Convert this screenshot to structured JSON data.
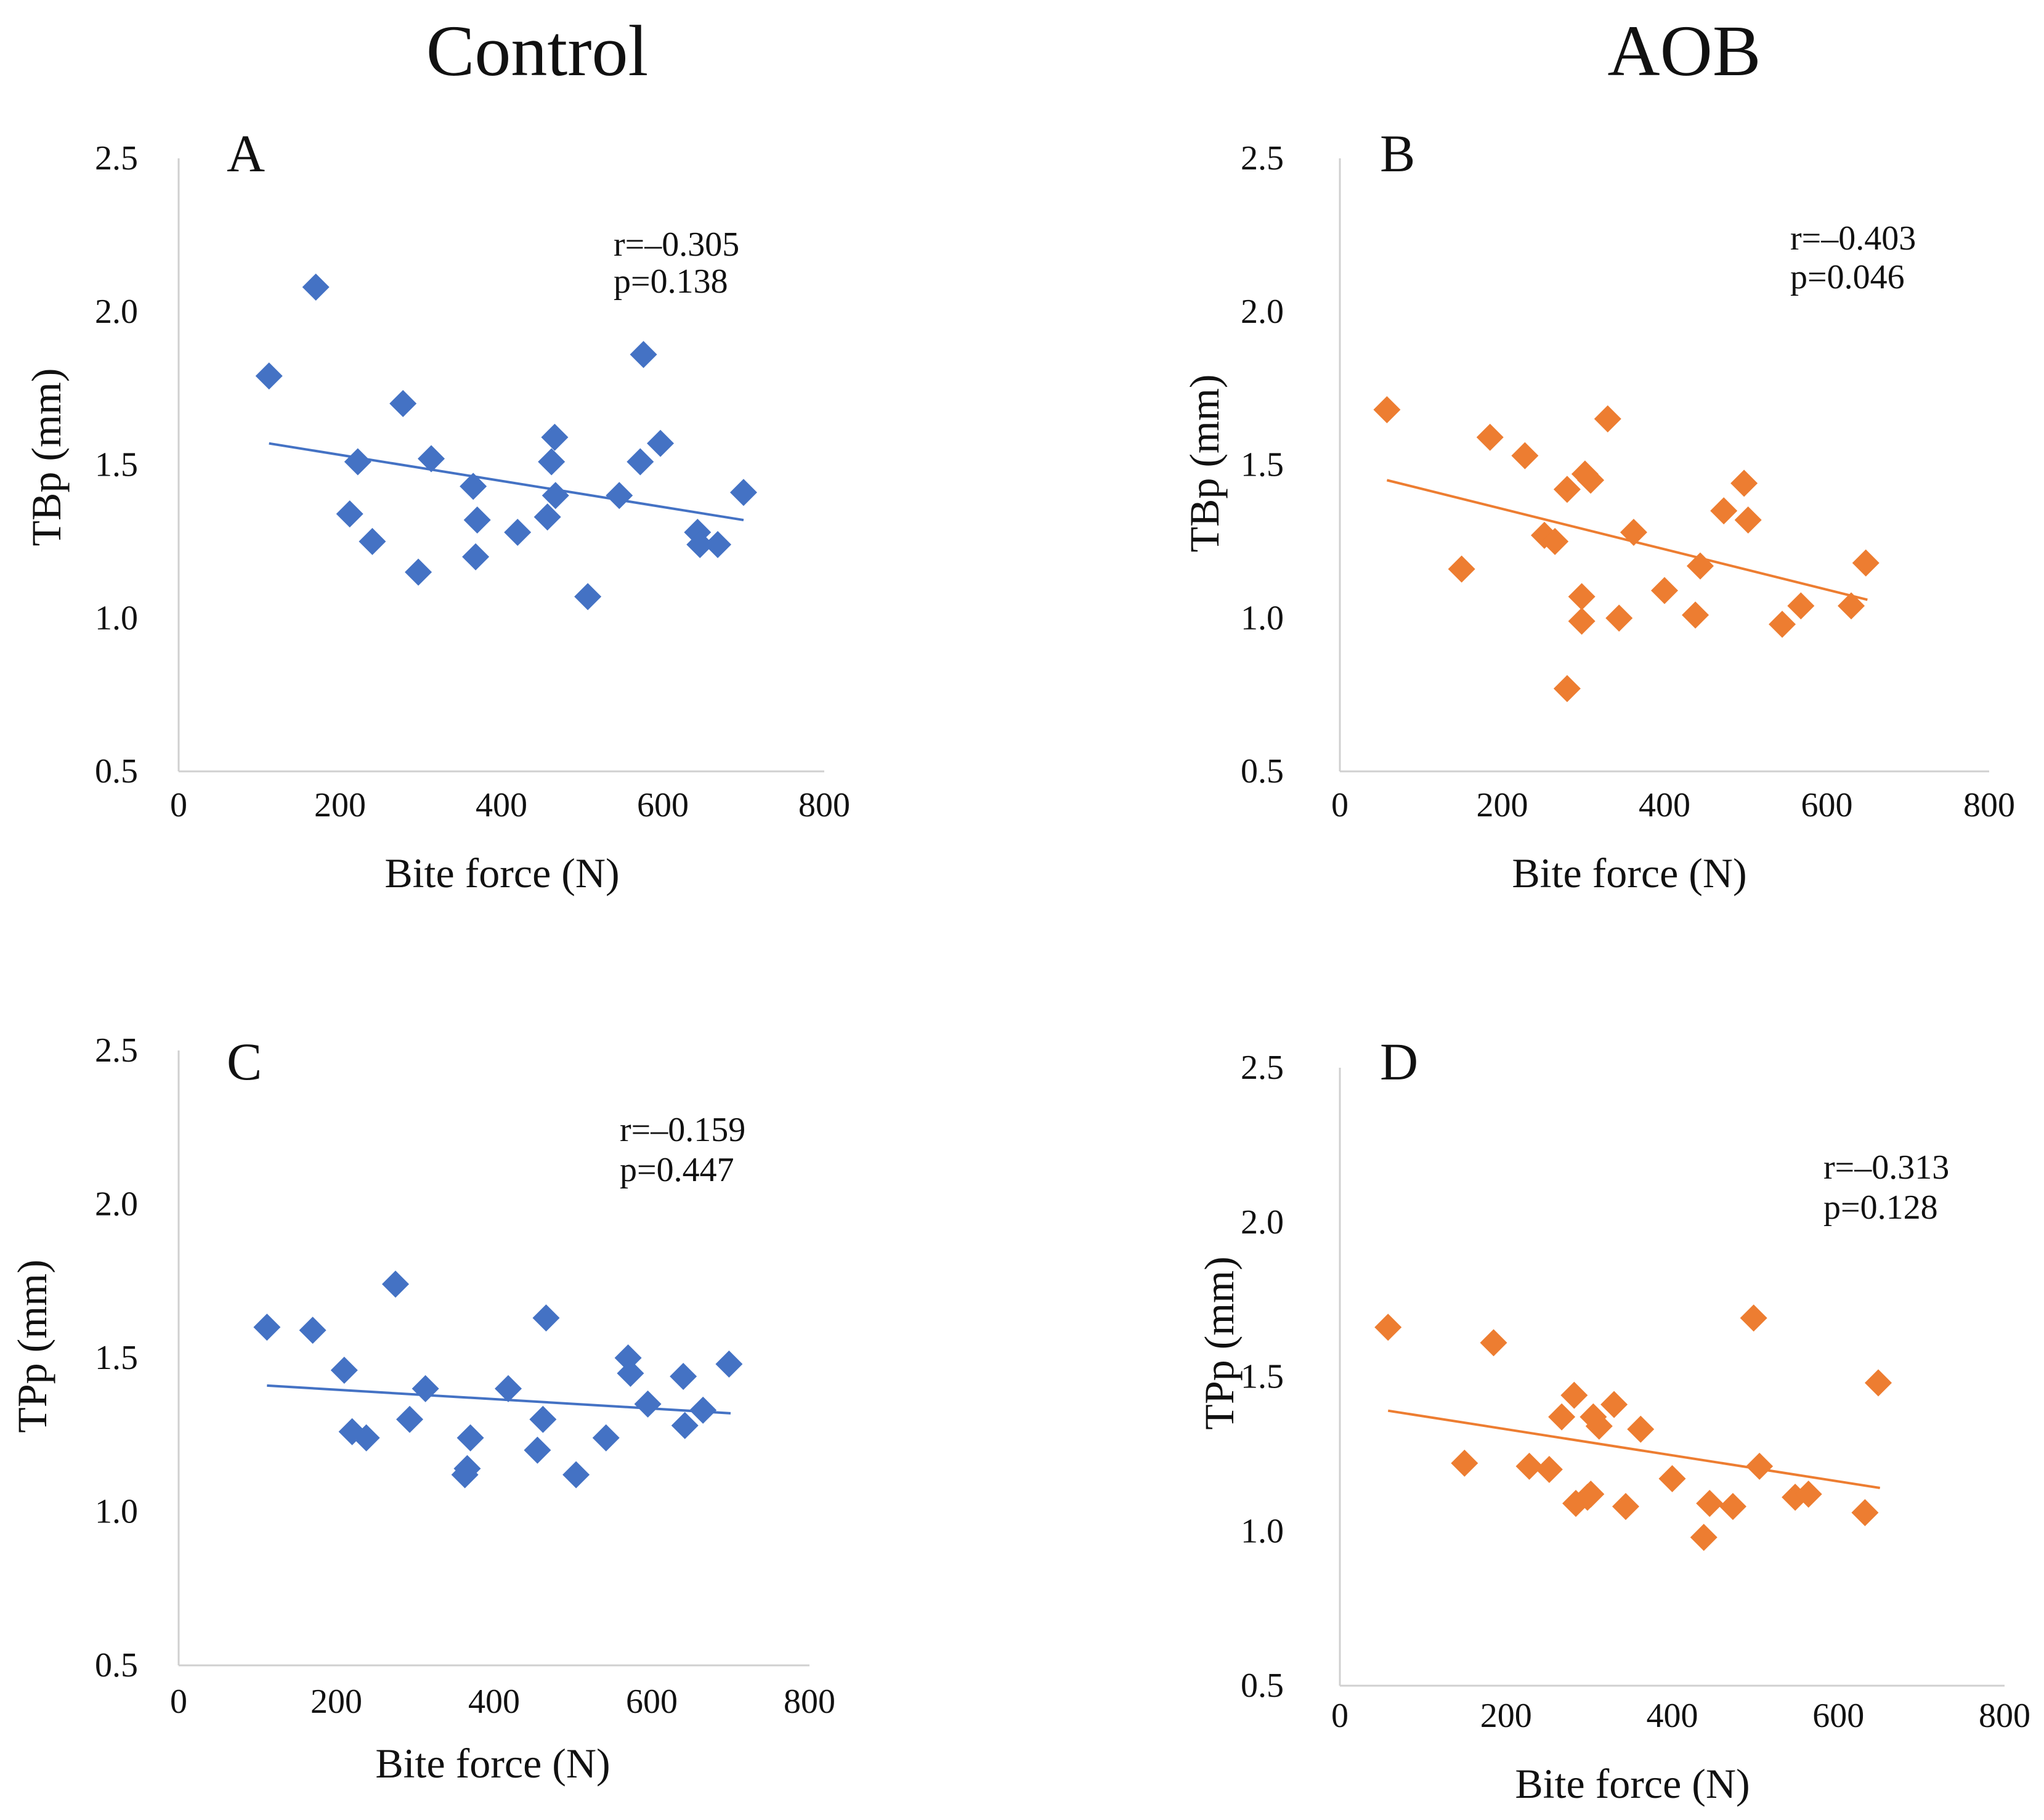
{
  "figure": {
    "column_titles": [
      "Control",
      "AOB"
    ]
  },
  "colors": {
    "control": "#4472C4",
    "aob": "#ED7D31",
    "axis": "#d0d0d0",
    "text": "#111111"
  },
  "chart_data": [
    {
      "type": "scatter",
      "panel": "A",
      "group": "Control",
      "xlabel": "Bite force (N)",
      "ylabel": "TBp (mm)",
      "xlim": [
        0,
        800
      ],
      "ylim": [
        0.5,
        2.5
      ],
      "xticks": [
        "0",
        "200",
        "400",
        "600",
        "800"
      ],
      "yticks": [
        "0.5",
        "1.0",
        "1.5",
        "2.0",
        "2.5"
      ],
      "annotation": {
        "r": "r=–0.305",
        "p": "p=0.138"
      },
      "trendline": {
        "x": [
          112,
          700
        ],
        "y": [
          1.57,
          1.32
        ]
      },
      "marker": "diamond",
      "x": [
        112,
        170,
        212,
        222,
        240,
        278,
        297,
        313,
        365,
        368,
        370,
        420,
        457,
        462,
        466,
        467,
        507,
        546,
        572,
        576,
        597,
        643,
        646,
        668,
        700
      ],
      "y": [
        1.79,
        2.08,
        1.34,
        1.51,
        1.25,
        1.7,
        1.15,
        1.52,
        1.43,
        1.2,
        1.32,
        1.28,
        1.33,
        1.51,
        1.59,
        1.4,
        1.07,
        1.4,
        1.51,
        1.86,
        1.57,
        1.28,
        1.24,
        1.24,
        1.41
      ]
    },
    {
      "type": "scatter",
      "panel": "B",
      "group": "AOB",
      "xlabel": "Bite force (N)",
      "ylabel": "TBp (mm)",
      "xlim": [
        0,
        800
      ],
      "ylim": [
        0.5,
        2.5
      ],
      "xticks": [
        "0",
        "200",
        "400",
        "600",
        "800"
      ],
      "yticks": [
        "0.5",
        "1.0",
        "1.5",
        "2.0",
        "2.5"
      ],
      "annotation": {
        "r": "r=–0.403",
        "p": "p=0.046"
      },
      "trendline": {
        "x": [
          58,
          650
        ],
        "y": [
          1.45,
          1.06
        ]
      },
      "marker": "diamond",
      "x": [
        58,
        150,
        185,
        228,
        252,
        265,
        280,
        280,
        298,
        298,
        302,
        309,
        330,
        344,
        362,
        400,
        438,
        444,
        473,
        498,
        503,
        545,
        568,
        630,
        648
      ],
      "y": [
        1.68,
        1.16,
        1.59,
        1.53,
        1.27,
        1.25,
        1.42,
        0.77,
        1.07,
        0.99,
        1.47,
        1.45,
        1.65,
        1.0,
        1.28,
        1.09,
        1.01,
        1.17,
        1.35,
        1.44,
        1.32,
        0.98,
        1.04,
        1.04,
        1.18
      ]
    },
    {
      "type": "scatter",
      "panel": "C",
      "group": "Control",
      "xlabel": "Bite force (N)",
      "ylabel": "TPp (mm)",
      "xlim": [
        0,
        800
      ],
      "ylim": [
        0.5,
        2.5
      ],
      "xticks": [
        "0",
        "200",
        "400",
        "600",
        "800"
      ],
      "yticks": [
        "0.5",
        "1.0",
        "1.5",
        "2.0",
        "2.5"
      ],
      "annotation": {
        "r": "r=–0.159",
        "p": "p=0.447"
      },
      "trendline": {
        "x": [
          112,
          700
        ],
        "y": [
          1.41,
          1.32
        ]
      },
      "marker": "diamond",
      "x": [
        112,
        170,
        210,
        220,
        238,
        275,
        293,
        313,
        363,
        366,
        370,
        418,
        455,
        462,
        466,
        504,
        542,
        570,
        573,
        595,
        640,
        642,
        665,
        698
      ],
      "y": [
        1.6,
        1.59,
        1.46,
        1.26,
        1.24,
        1.74,
        1.3,
        1.4,
        1.12,
        1.14,
        1.24,
        1.4,
        1.2,
        1.3,
        1.63,
        1.12,
        1.24,
        1.5,
        1.45,
        1.35,
        1.44,
        1.28,
        1.33,
        1.48
      ]
    },
    {
      "type": "scatter",
      "panel": "D",
      "group": "AOB",
      "xlabel": "Bite force (N)",
      "ylabel": "TPp (mm)",
      "xlim": [
        0,
        800
      ],
      "ylim": [
        0.5,
        2.5
      ],
      "xticks": [
        "0",
        "200",
        "400",
        "600",
        "800"
      ],
      "yticks": [
        "0.5",
        "1.0",
        "1.5",
        "2.0",
        "2.5"
      ],
      "annotation": {
        "r": "r=–0.313",
        "p": "p=0.128"
      },
      "trendline": {
        "x": [
          58,
          650
        ],
        "y": [
          1.39,
          1.14
        ]
      },
      "marker": "diamond",
      "x": [
        58,
        150,
        185,
        228,
        252,
        267,
        282,
        284,
        298,
        302,
        305,
        312,
        330,
        344,
        362,
        400,
        438,
        445,
        473,
        498,
        505,
        548,
        564,
        632,
        648
      ],
      "y": [
        1.66,
        1.22,
        1.61,
        1.21,
        1.2,
        1.37,
        1.44,
        1.09,
        1.11,
        1.12,
        1.37,
        1.34,
        1.41,
        1.08,
        1.33,
        1.17,
        0.98,
        1.09,
        1.08,
        1.69,
        1.21,
        1.11,
        1.12,
        1.06,
        1.48
      ]
    }
  ]
}
